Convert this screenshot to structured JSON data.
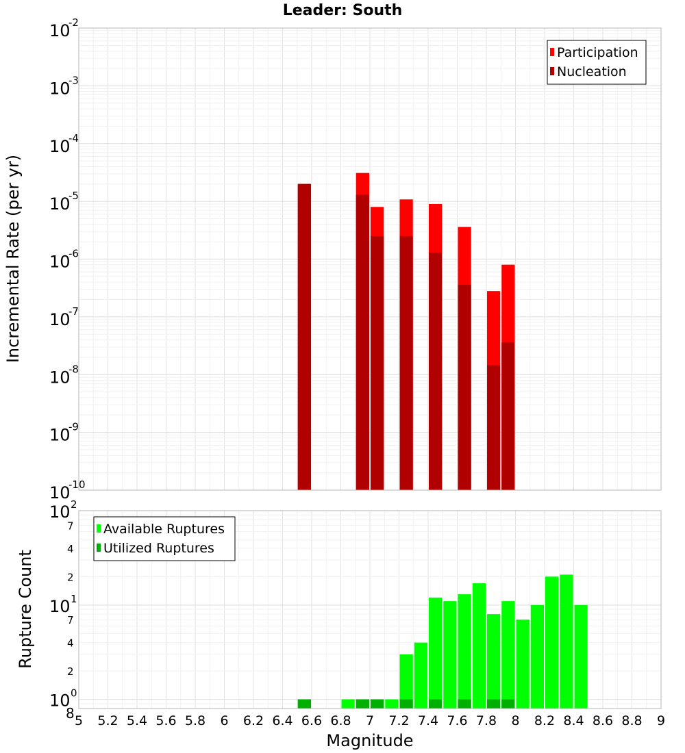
{
  "chart_data": [
    {
      "type": "bar",
      "title": "Leader: South",
      "xlabel": "Magnitude",
      "ylabel": "Incremental Rate (per yr)",
      "yscale": "log",
      "xlim": [
        5,
        9
      ],
      "ylim": [
        1e-10,
        0.01
      ],
      "y_tick_labels": [
        {
          "base": "10",
          "exp": "-10"
        },
        {
          "base": "10",
          "exp": "-9"
        },
        {
          "base": "10",
          "exp": "-8"
        },
        {
          "base": "10",
          "exp": "-7"
        },
        {
          "base": "10",
          "exp": "-6"
        },
        {
          "base": "10",
          "exp": "-5"
        },
        {
          "base": "10",
          "exp": "-4"
        },
        {
          "base": "10",
          "exp": "-3"
        },
        {
          "base": "10",
          "exp": "-2"
        }
      ],
      "grid": true,
      "legend": {
        "position": "top-right"
      },
      "colors": {
        "Participation": "#ff0000",
        "Nucleation": "#b00000"
      },
      "series": [
        {
          "name": "Participation",
          "points": [
            [
              6.55,
              2e-05
            ],
            [
              6.95,
              3.1e-05
            ],
            [
              7.05,
              8e-06
            ],
            [
              7.25,
              1.08e-05
            ],
            [
              7.45,
              9e-06
            ],
            [
              7.65,
              3.6e-06
            ],
            [
              7.85,
              2.8e-07
            ],
            [
              7.95,
              8e-07
            ]
          ]
        },
        {
          "name": "Nucleation",
          "points": [
            [
              6.55,
              2e-05
            ],
            [
              6.95,
              1.3e-05
            ],
            [
              7.05,
              2.5e-06
            ],
            [
              7.25,
              2.5e-06
            ],
            [
              7.45,
              1.3e-06
            ],
            [
              7.65,
              3.6e-07
            ],
            [
              7.85,
              1.45e-08
            ],
            [
              7.95,
              3.6e-08
            ]
          ]
        }
      ]
    },
    {
      "type": "bar",
      "xlabel": "Magnitude",
      "ylabel": "Rupture Count",
      "yscale": "log",
      "xlim": [
        5,
        9
      ],
      "ylim": [
        0.8,
        100
      ],
      "x_tick_labels": [
        "5",
        "5.2",
        "5.4",
        "5.6",
        "5.8",
        "6",
        "6.2",
        "6.4",
        "6.6",
        "6.8",
        "7",
        "7.2",
        "7.4",
        "7.6",
        "7.8",
        "8",
        "8.2",
        "8.4",
        "8.6",
        "8.8",
        "9"
      ],
      "y_tick_labels": [
        {
          "value": 0.8,
          "label": "8",
          "exp": ""
        },
        {
          "value": 1,
          "label": "10",
          "exp": "0"
        },
        {
          "value": 2,
          "label": "2",
          "exp": ""
        },
        {
          "value": 4,
          "label": "4",
          "exp": ""
        },
        {
          "value": 7,
          "label": "7",
          "exp": ""
        },
        {
          "value": 10,
          "label": "10",
          "exp": "1"
        },
        {
          "value": 20,
          "label": "2",
          "exp": ""
        },
        {
          "value": 40,
          "label": "4",
          "exp": ""
        },
        {
          "value": 70,
          "label": "7",
          "exp": ""
        },
        {
          "value": 100,
          "label": "10",
          "exp": "2"
        }
      ],
      "grid": true,
      "legend": {
        "position": "top-left"
      },
      "colors": {
        "Available Ruptures": "#00ff00",
        "Utilized Ruptures": "#00b000"
      },
      "series": [
        {
          "name": "Available Ruptures",
          "points": [
            [
              6.55,
              1
            ],
            [
              6.85,
              1
            ],
            [
              6.95,
              1
            ],
            [
              7.05,
              1
            ],
            [
              7.15,
              1
            ],
            [
              7.25,
              3
            ],
            [
              7.35,
              4
            ],
            [
              7.45,
              12
            ],
            [
              7.55,
              11
            ],
            [
              7.65,
              13
            ],
            [
              7.75,
              17
            ],
            [
              7.85,
              8
            ],
            [
              7.95,
              11
            ],
            [
              8.05,
              7
            ],
            [
              8.15,
              10
            ],
            [
              8.25,
              20
            ],
            [
              8.35,
              21
            ],
            [
              8.45,
              10
            ]
          ]
        },
        {
          "name": "Utilized Ruptures",
          "points": [
            [
              6.55,
              1
            ],
            [
              6.95,
              1
            ],
            [
              7.05,
              1
            ],
            [
              7.25,
              1
            ],
            [
              7.45,
              1
            ],
            [
              7.65,
              1
            ],
            [
              7.85,
              1
            ],
            [
              7.95,
              1
            ]
          ]
        }
      ]
    }
  ]
}
